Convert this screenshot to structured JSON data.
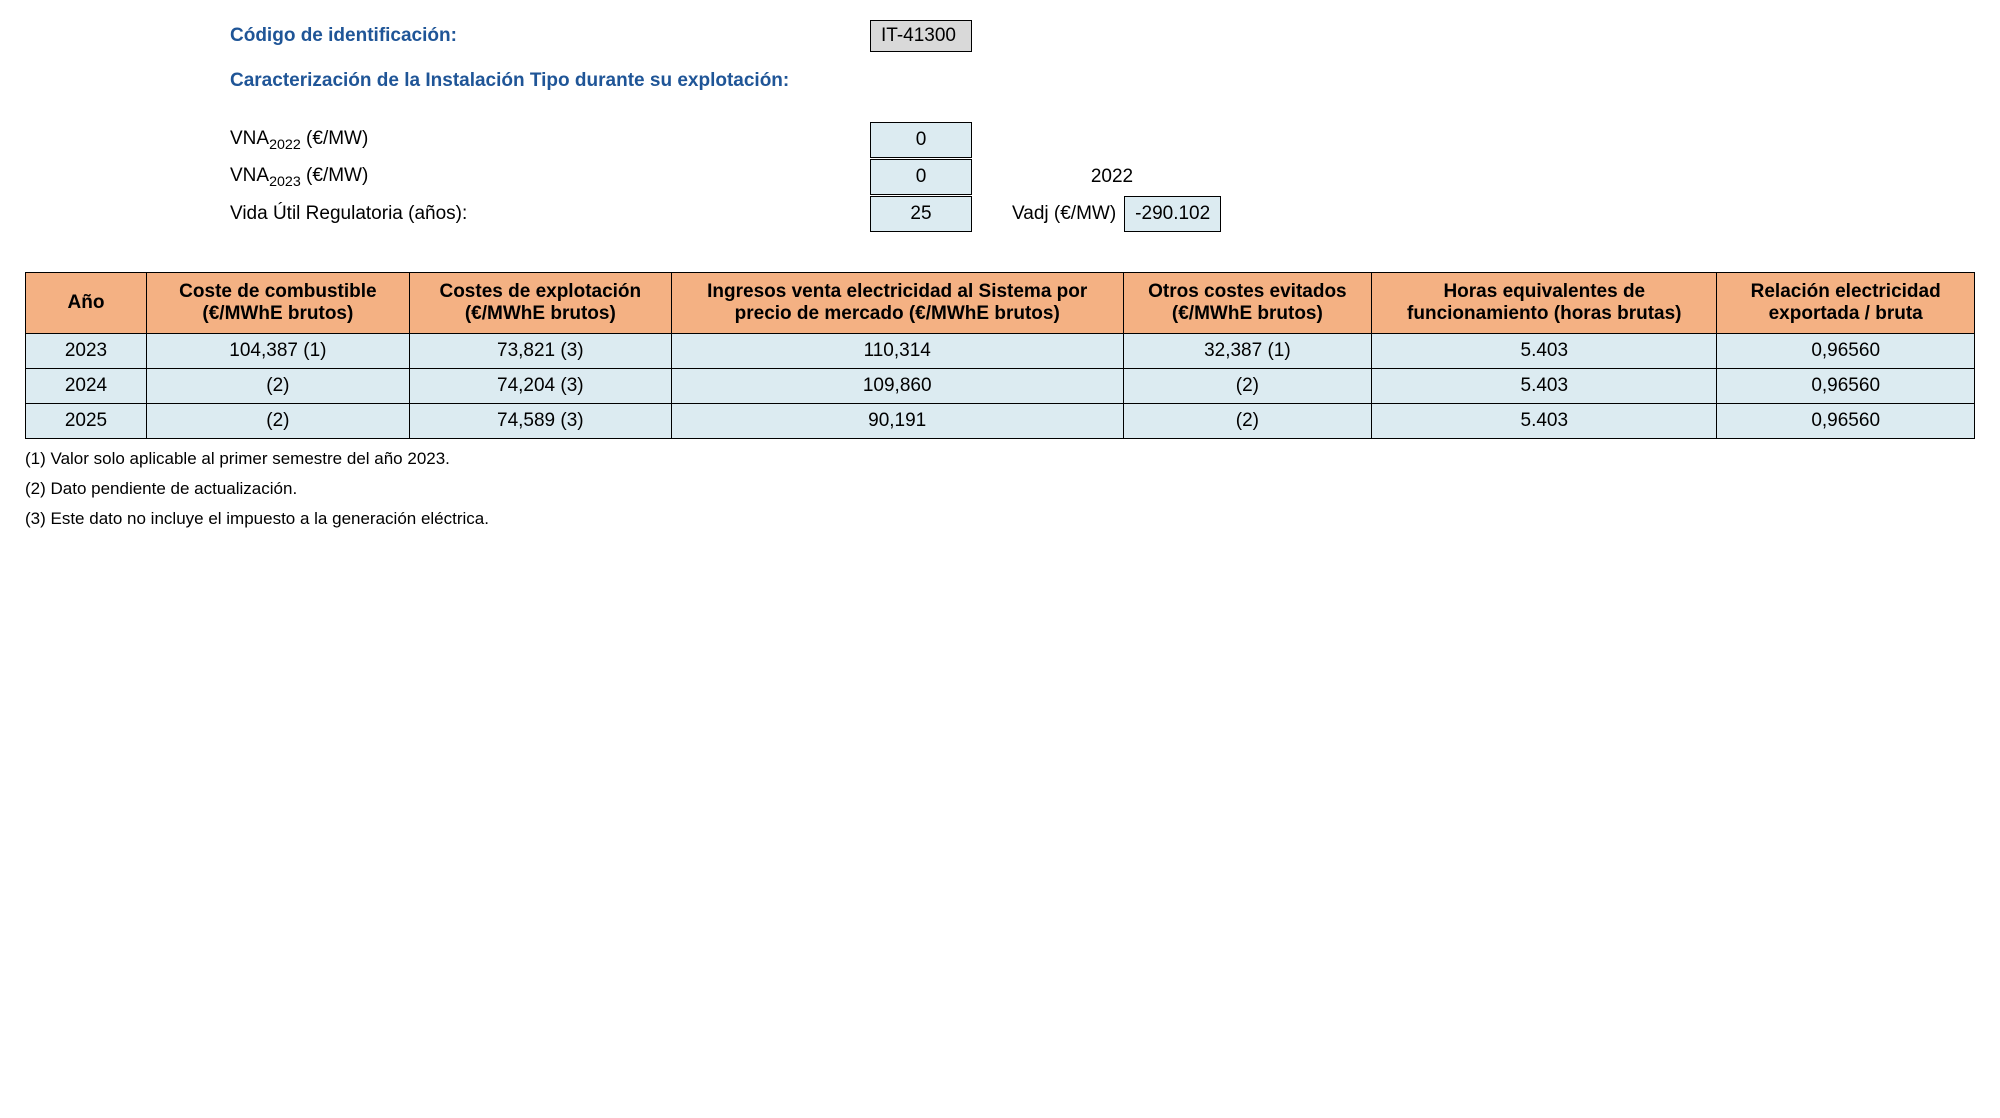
{
  "header": {
    "id_label": "Código de identificación:",
    "id_value": "IT-41300",
    "section_title": "Caracterización de la Instalación Tipo durante su explotación:"
  },
  "params": {
    "vna2022_label_pre": "VNA",
    "vna2022_sub": "2022",
    "vna2022_label_post": " (€/MW)",
    "vna2022_value": "0",
    "vna2023_label_pre": "VNA",
    "vna2023_sub": "2023",
    "vna2023_label_post": " (€/MW)",
    "vna2023_value": "0",
    "vna2023_year": "2022",
    "vida_label": "Vida Útil Regulatoria (años):",
    "vida_value": "25",
    "vadj_label": "Vadj (€/MW)",
    "vadj_value": "-290.102"
  },
  "table": {
    "headers": {
      "c0": "Año",
      "c1": "Coste de combustible (€/MWhE brutos)",
      "c2": "Costes de explotación (€/MWhE brutos)",
      "c3": "Ingresos venta electricidad al Sistema por precio de mercado (€/MWhE brutos)",
      "c4": "Otros costes evitados (€/MWhE brutos)",
      "c5": "Horas equivalentes de funcionamiento (horas brutas)",
      "c6": "Relación electricidad exportada / bruta"
    },
    "rows": [
      {
        "c0": "2023",
        "c1": "104,387 (1)",
        "c2": "73,821 (3)",
        "c3": "110,314",
        "c4": "32,387 (1)",
        "c5": "5.403",
        "c6": "0,96560"
      },
      {
        "c0": "2024",
        "c1": "(2)",
        "c2": "74,204 (3)",
        "c3": "109,860",
        "c4": "(2)",
        "c5": "5.403",
        "c6": "0,96560"
      },
      {
        "c0": "2025",
        "c1": "(2)",
        "c2": "74,589 (3)",
        "c3": "90,191",
        "c4": "(2)",
        "c5": "5.403",
        "c6": "0,96560"
      }
    ]
  },
  "footnotes": {
    "n1": "(1) Valor solo aplicable al primer semestre del año 2023.",
    "n2": "(2) Dato pendiente de actualización.",
    "n3": "(3) Este dato no incluye el impuesto a la generación eléctrica."
  }
}
